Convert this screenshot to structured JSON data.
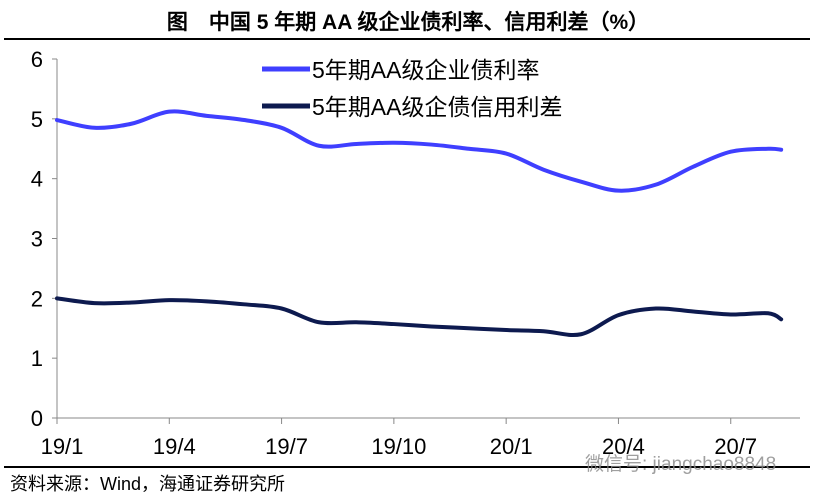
{
  "title": "图　中国 5 年期 AA 级企业债利率、信用利差（%）",
  "source": "资料来源：Wind，海通证券研究所",
  "watermark": "微信号: jiangchao8848",
  "chart_data": {
    "type": "line",
    "title": "图　中国 5 年期 AA 级企业债利率、信用利差（%）",
    "categories": [
      "19/1",
      "19/2",
      "19/3",
      "19/4",
      "19/5",
      "19/6",
      "19/7",
      "19/8",
      "19/9",
      "19/10",
      "19/11",
      "19/12",
      "20/1",
      "20/2",
      "20/3",
      "20/4",
      "20/5",
      "20/6",
      "20/7",
      "20/8"
    ],
    "xticks": [
      "19/1",
      "19/4",
      "19/7",
      "19/10",
      "20/1",
      "20/4",
      "20/7"
    ],
    "ylim": [
      0,
      6
    ],
    "yticks": [
      0,
      1,
      2,
      3,
      4,
      5,
      6
    ],
    "grid": false,
    "legend": "top-center",
    "series": [
      {
        "name": "5年期AA级企业债利率",
        "color": "#3f3fff",
        "values": [
          4.98,
          4.85,
          4.92,
          5.12,
          5.05,
          4.98,
          4.85,
          4.55,
          4.58,
          4.6,
          4.57,
          4.5,
          4.42,
          4.15,
          3.95,
          3.8,
          3.9,
          4.2,
          4.45,
          4.5
        ]
      },
      {
        "name": "5年期AA级企债信用利差",
        "color": "#0d1a4f",
        "values": [
          2.0,
          1.92,
          1.93,
          1.97,
          1.95,
          1.9,
          1.83,
          1.6,
          1.6,
          1.57,
          1.53,
          1.5,
          1.47,
          1.45,
          1.4,
          1.72,
          1.83,
          1.78,
          1.73,
          1.75
        ]
      }
    ]
  }
}
